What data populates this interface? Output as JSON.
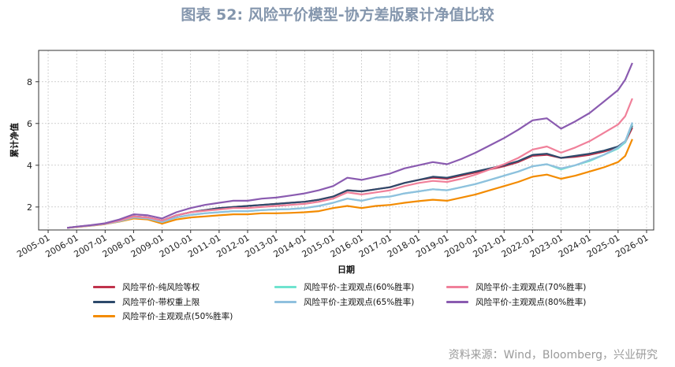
{
  "title": "图表 52: 风险平价模型-协方差版累计净值比较",
  "source": "资料来源：Wind，Bloomberg，兴业研究",
  "chart_data": {
    "type": "line",
    "title": "图表 52: 风险平价模型-协方差版累计净值比较",
    "xlabel": "日期",
    "ylabel": "累计净值",
    "x_ticks": [
      "2005-01",
      "2006-01",
      "2007-01",
      "2008-01",
      "2009-01",
      "2010-01",
      "2011-01",
      "2012-01",
      "2013-01",
      "2014-01",
      "2015-01",
      "2016-01",
      "2017-01",
      "2018-01",
      "2019-01",
      "2020-01",
      "2021-01",
      "2022-01",
      "2023-01",
      "2024-01",
      "2025-01",
      "2026-01"
    ],
    "y_ticks": [
      2,
      4,
      6,
      8
    ],
    "xlim": [
      "2004-09",
      "2026-04"
    ],
    "ylim": [
      0.9,
      9.5
    ],
    "grid": true,
    "legend_position": "bottom",
    "x": [
      "2005-09",
      "2006-01",
      "2006-07",
      "2007-01",
      "2007-07",
      "2008-01",
      "2008-07",
      "2009-01",
      "2009-07",
      "2010-01",
      "2010-07",
      "2011-01",
      "2011-07",
      "2012-01",
      "2012-07",
      "2013-01",
      "2013-07",
      "2014-01",
      "2014-07",
      "2015-01",
      "2015-07",
      "2016-01",
      "2016-07",
      "2017-01",
      "2017-07",
      "2018-01",
      "2018-07",
      "2019-01",
      "2019-07",
      "2020-01",
      "2020-07",
      "2021-01",
      "2021-07",
      "2022-01",
      "2022-07",
      "2023-01",
      "2023-07",
      "2024-01",
      "2024-07",
      "2025-01",
      "2025-04",
      "2025-07"
    ],
    "series": [
      {
        "name": "风险平价-纯风险等权",
        "color": "#c0334c",
        "values": [
          1.0,
          1.05,
          1.12,
          1.2,
          1.35,
          1.55,
          1.5,
          1.35,
          1.6,
          1.75,
          1.85,
          1.95,
          2.0,
          2.05,
          2.1,
          2.15,
          2.2,
          2.25,
          2.35,
          2.5,
          2.8,
          2.75,
          2.85,
          2.95,
          3.15,
          3.3,
          3.4,
          3.35,
          3.5,
          3.65,
          3.8,
          3.95,
          4.15,
          4.45,
          4.5,
          4.35,
          4.4,
          4.5,
          4.65,
          4.85,
          5.1,
          5.8
        ]
      },
      {
        "name": "风险平价-带权重上限",
        "color": "#2d4a6b",
        "values": [
          1.0,
          1.05,
          1.12,
          1.2,
          1.35,
          1.55,
          1.5,
          1.35,
          1.6,
          1.75,
          1.85,
          1.95,
          2.0,
          2.05,
          2.1,
          2.15,
          2.2,
          2.25,
          2.35,
          2.5,
          2.8,
          2.75,
          2.85,
          2.95,
          3.15,
          3.3,
          3.45,
          3.4,
          3.55,
          3.7,
          3.85,
          4.0,
          4.2,
          4.5,
          4.55,
          4.35,
          4.45,
          4.55,
          4.7,
          4.9,
          5.15,
          5.9
        ]
      },
      {
        "name": "风险平价-主观观点(50%胜率)",
        "color": "#f38b00",
        "values": [
          1.0,
          1.04,
          1.1,
          1.18,
          1.3,
          1.45,
          1.4,
          1.2,
          1.4,
          1.5,
          1.55,
          1.6,
          1.65,
          1.65,
          1.7,
          1.7,
          1.72,
          1.75,
          1.8,
          1.95,
          2.05,
          1.95,
          2.05,
          2.1,
          2.2,
          2.28,
          2.35,
          2.3,
          2.45,
          2.6,
          2.8,
          3.0,
          3.2,
          3.45,
          3.55,
          3.35,
          3.5,
          3.7,
          3.9,
          4.15,
          4.45,
          5.25
        ]
      },
      {
        "name": "风险平价-主观观点(60%胜率)",
        "color": "#6fe3cf",
        "values": [
          1.0,
          1.05,
          1.11,
          1.19,
          1.32,
          1.5,
          1.45,
          1.28,
          1.5,
          1.62,
          1.7,
          1.75,
          1.8,
          1.8,
          1.85,
          1.88,
          1.9,
          1.95,
          2.05,
          2.2,
          2.4,
          2.3,
          2.45,
          2.5,
          2.65,
          2.75,
          2.85,
          2.8,
          2.95,
          3.1,
          3.3,
          3.5,
          3.7,
          3.95,
          4.05,
          3.8,
          4.0,
          4.2,
          4.5,
          4.8,
          5.1,
          6.0
        ]
      },
      {
        "name": "风险平价-主观观点(65%胜率)",
        "color": "#8fc0de",
        "values": [
          1.0,
          1.05,
          1.11,
          1.19,
          1.32,
          1.5,
          1.45,
          1.28,
          1.5,
          1.62,
          1.7,
          1.75,
          1.8,
          1.8,
          1.85,
          1.88,
          1.9,
          1.95,
          2.05,
          2.2,
          2.4,
          2.3,
          2.45,
          2.5,
          2.65,
          2.75,
          2.85,
          2.8,
          2.95,
          3.1,
          3.3,
          3.5,
          3.7,
          3.95,
          4.05,
          3.85,
          4.0,
          4.25,
          4.5,
          4.85,
          5.15,
          6.05
        ]
      },
      {
        "name": "风险平价-主观观点(70%胜率)",
        "color": "#f0809a",
        "values": [
          1.0,
          1.05,
          1.12,
          1.2,
          1.35,
          1.55,
          1.5,
          1.35,
          1.6,
          1.75,
          1.82,
          1.88,
          1.95,
          1.95,
          2.0,
          2.05,
          2.1,
          2.15,
          2.25,
          2.4,
          2.7,
          2.6,
          2.7,
          2.8,
          3.0,
          3.15,
          3.25,
          3.2,
          3.35,
          3.55,
          3.8,
          4.05,
          4.35,
          4.75,
          4.9,
          4.6,
          4.85,
          5.15,
          5.55,
          5.95,
          6.35,
          7.2
        ]
      },
      {
        "name": "风险平价-主观观点(80%胜率)",
        "color": "#8a5bb0",
        "values": [
          1.0,
          1.06,
          1.13,
          1.22,
          1.4,
          1.65,
          1.6,
          1.45,
          1.75,
          1.95,
          2.1,
          2.2,
          2.3,
          2.3,
          2.4,
          2.45,
          2.55,
          2.65,
          2.8,
          3.0,
          3.4,
          3.3,
          3.45,
          3.6,
          3.85,
          4.0,
          4.15,
          4.05,
          4.3,
          4.6,
          4.95,
          5.3,
          5.7,
          6.15,
          6.25,
          5.75,
          6.1,
          6.5,
          7.05,
          7.6,
          8.1,
          8.9
        ]
      }
    ]
  },
  "legend": {
    "items": [
      "风险平价-纯风险等权",
      "风险平价-主观观点(60%胜率)",
      "风险平价-主观观点(70%胜率)",
      "风险平价-带权重上限",
      "风险平价-主观观点(65%胜率)",
      "风险平价-主观观点(80%胜率)",
      "风险平价-主观观点(50%胜率)"
    ]
  }
}
